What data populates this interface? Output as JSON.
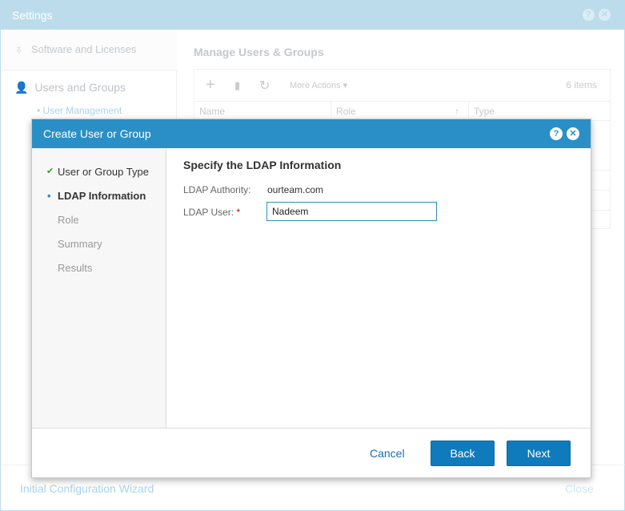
{
  "settings": {
    "title": "Settings",
    "help_icon": "question-icon",
    "close_icon": "close-icon",
    "sidebar": {
      "software": "Software and Licenses",
      "users": "Users and Groups",
      "user_management": "User Management"
    },
    "main": {
      "title": "Manage Users & Groups",
      "more_actions": "More Actions",
      "items_count": "6 items",
      "columns": [
        "Name",
        "Role",
        "Type"
      ]
    },
    "footer": {
      "wizard": "Initial Configuration Wizard",
      "close": "Close"
    }
  },
  "modal": {
    "title": "Create User or Group",
    "steps": [
      {
        "label": "User or Group Type",
        "state": "done"
      },
      {
        "label": "LDAP Information",
        "state": "current"
      },
      {
        "label": "Role",
        "state": "pending"
      },
      {
        "label": "Summary",
        "state": "pending"
      },
      {
        "label": "Results",
        "state": "pending"
      }
    ],
    "heading": "Specify the LDAP Information",
    "authority_label": "LDAP Authority:",
    "authority_value": "ourteam.com",
    "user_label": "LDAP User:",
    "required_mark": "*",
    "user_value": "Nadeem",
    "cancel": "Cancel",
    "back": "Back",
    "next": "Next"
  },
  "colors": {
    "accent": "#2a8fc6",
    "button": "#0f7bbd",
    "check": "#3a9a2e"
  }
}
